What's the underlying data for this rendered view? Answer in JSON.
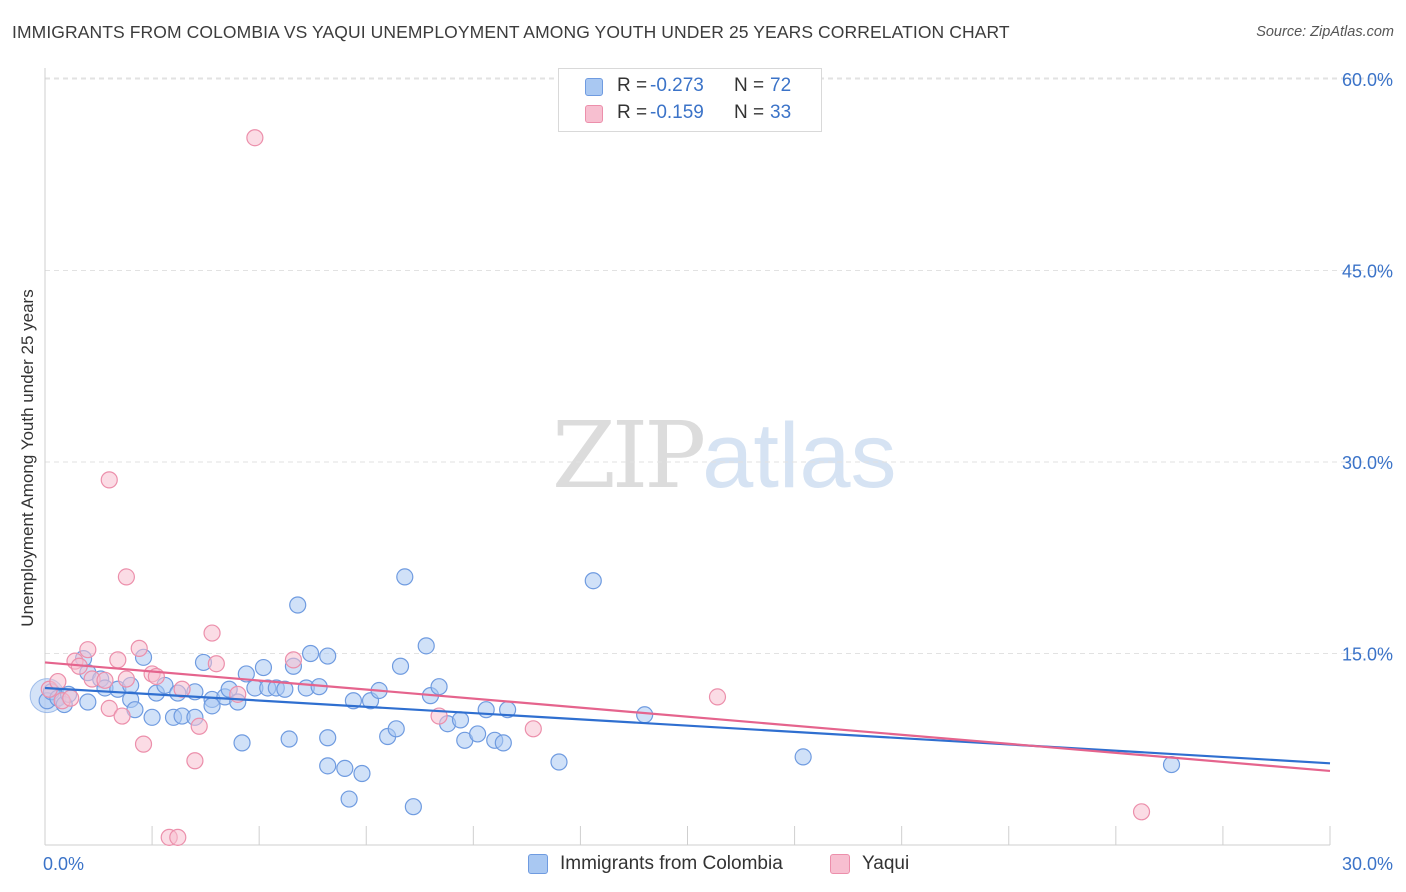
{
  "title": "IMMIGRANTS FROM COLOMBIA VS YAQUI UNEMPLOYMENT AMONG YOUTH UNDER 25 YEARS CORRELATION CHART",
  "source": "Source: ZipAtlas.com",
  "watermark": {
    "zip": "ZIP",
    "atlas": "atlas"
  },
  "legend_stats": [
    {
      "r_label": "R =",
      "r_value": "-0.273",
      "n_label": "N =",
      "n_value": "72"
    },
    {
      "r_label": "R =",
      "r_value": "-0.159",
      "n_label": "N =",
      "n_value": "33"
    }
  ],
  "colors": {
    "blue_fill": "#a9c8f2",
    "blue_stroke": "#6f9be0",
    "blue_line": "#2f6fd0",
    "pink_fill": "#f7bfd0",
    "pink_stroke": "#ec8fab",
    "pink_line": "#e5648d",
    "axis_text": "#3b73c8",
    "grid": "#e2e2e2"
  },
  "chart_data": {
    "type": "scatter",
    "title": "IMMIGRANTS FROM COLOMBIA VS YAQUI UNEMPLOYMENT AMONG YOUTH UNDER 25 YEARS CORRELATION CHART",
    "xlabel": "",
    "ylabel": "Unemployment Among Youth under 25 years",
    "xlim": [
      0,
      30
    ],
    "ylim": [
      0,
      62.5
    ],
    "x_tick_labels": [
      "0.0%",
      "30.0%"
    ],
    "y_ticks": [
      15,
      30,
      45,
      60
    ],
    "y_tick_labels": [
      "15.0%",
      "30.0%",
      "45.0%",
      "60.0%"
    ],
    "grid": "horizontal dashed",
    "legend_position": "bottom",
    "series": [
      {
        "name": "Immigrants from Colombia",
        "color": "blue",
        "points": [
          [
            0.05,
            11.3
          ],
          [
            0.15,
            12.0
          ],
          [
            0.3,
            11.5
          ],
          [
            0.45,
            11.0
          ],
          [
            0.55,
            11.8
          ],
          [
            1.0,
            11.2
          ],
          [
            0.9,
            14.6
          ],
          [
            1.0,
            13.5
          ],
          [
            1.3,
            13.0
          ],
          [
            1.4,
            12.3
          ],
          [
            1.7,
            12.2
          ],
          [
            2.0,
            11.4
          ],
          [
            2.0,
            12.5
          ],
          [
            2.1,
            10.6
          ],
          [
            2.3,
            14.7
          ],
          [
            2.5,
            10.0
          ],
          [
            2.6,
            11.9
          ],
          [
            2.8,
            12.5
          ],
          [
            3.0,
            10.0
          ],
          [
            3.1,
            11.9
          ],
          [
            3.2,
            10.1
          ],
          [
            3.5,
            10.0
          ],
          [
            3.5,
            12.0
          ],
          [
            3.7,
            14.3
          ],
          [
            3.9,
            11.4
          ],
          [
            3.9,
            10.9
          ],
          [
            4.2,
            11.6
          ],
          [
            4.3,
            12.2
          ],
          [
            4.5,
            11.2
          ],
          [
            4.6,
            8.0
          ],
          [
            4.7,
            13.4
          ],
          [
            4.9,
            12.3
          ],
          [
            5.1,
            13.9
          ],
          [
            5.2,
            12.3
          ],
          [
            5.4,
            12.3
          ],
          [
            5.7,
            8.3
          ],
          [
            5.6,
            12.2
          ],
          [
            5.8,
            14.0
          ],
          [
            5.9,
            18.8
          ],
          [
            6.1,
            12.3
          ],
          [
            6.2,
            15.0
          ],
          [
            6.4,
            12.4
          ],
          [
            6.6,
            8.4
          ],
          [
            6.6,
            14.8
          ],
          [
            6.6,
            6.2
          ],
          [
            7.0,
            6.0
          ],
          [
            7.1,
            3.6
          ],
          [
            7.2,
            11.3
          ],
          [
            7.4,
            5.6
          ],
          [
            7.6,
            11.3
          ],
          [
            7.8,
            12.1
          ],
          [
            8.0,
            8.5
          ],
          [
            8.2,
            9.1
          ],
          [
            8.3,
            14.0
          ],
          [
            8.4,
            21.0
          ],
          [
            8.6,
            3.0
          ],
          [
            8.9,
            15.6
          ],
          [
            9.0,
            11.7
          ],
          [
            9.2,
            12.4
          ],
          [
            9.4,
            9.5
          ],
          [
            9.7,
            9.8
          ],
          [
            9.8,
            8.2
          ],
          [
            10.1,
            8.7
          ],
          [
            10.3,
            10.6
          ],
          [
            10.5,
            8.2
          ],
          [
            10.7,
            8.0
          ],
          [
            10.8,
            10.6
          ],
          [
            12.0,
            6.5
          ],
          [
            12.8,
            20.7
          ],
          [
            14.0,
            10.2
          ],
          [
            17.7,
            6.9
          ],
          [
            26.3,
            6.3
          ]
        ]
      },
      {
        "name": "Yaqui",
        "color": "pink",
        "points": [
          [
            0.1,
            12.2
          ],
          [
            0.3,
            12.8
          ],
          [
            0.4,
            11.3
          ],
          [
            0.6,
            11.5
          ],
          [
            0.7,
            14.4
          ],
          [
            0.8,
            14.0
          ],
          [
            1.0,
            15.3
          ],
          [
            1.1,
            13.0
          ],
          [
            1.4,
            12.9
          ],
          [
            1.5,
            10.7
          ],
          [
            1.7,
            14.5
          ],
          [
            1.8,
            10.1
          ],
          [
            1.9,
            21.0
          ],
          [
            1.9,
            13.0
          ],
          [
            1.5,
            28.6
          ],
          [
            2.2,
            15.4
          ],
          [
            2.3,
            7.9
          ],
          [
            2.5,
            13.4
          ],
          [
            2.6,
            13.2
          ],
          [
            2.9,
            0.6
          ],
          [
            3.1,
            0.6
          ],
          [
            3.2,
            12.2
          ],
          [
            3.5,
            6.6
          ],
          [
            3.6,
            9.3
          ],
          [
            3.9,
            16.6
          ],
          [
            4.0,
            14.2
          ],
          [
            4.5,
            11.8
          ],
          [
            4.9,
            55.4
          ],
          [
            5.8,
            14.5
          ],
          [
            9.2,
            10.1
          ],
          [
            11.4,
            9.1
          ],
          [
            15.7,
            11.6
          ],
          [
            25.6,
            2.6
          ]
        ]
      }
    ],
    "trend_lines": [
      {
        "series": "Immigrants from Colombia",
        "x": [
          0,
          30
        ],
        "y": [
          12.3,
          6.4
        ]
      },
      {
        "series": "Yaqui",
        "x": [
          0,
          30
        ],
        "y": [
          14.3,
          5.8
        ]
      }
    ]
  },
  "bottom_legend": [
    {
      "label": "Immigrants from Colombia"
    },
    {
      "label": "Yaqui"
    }
  ]
}
